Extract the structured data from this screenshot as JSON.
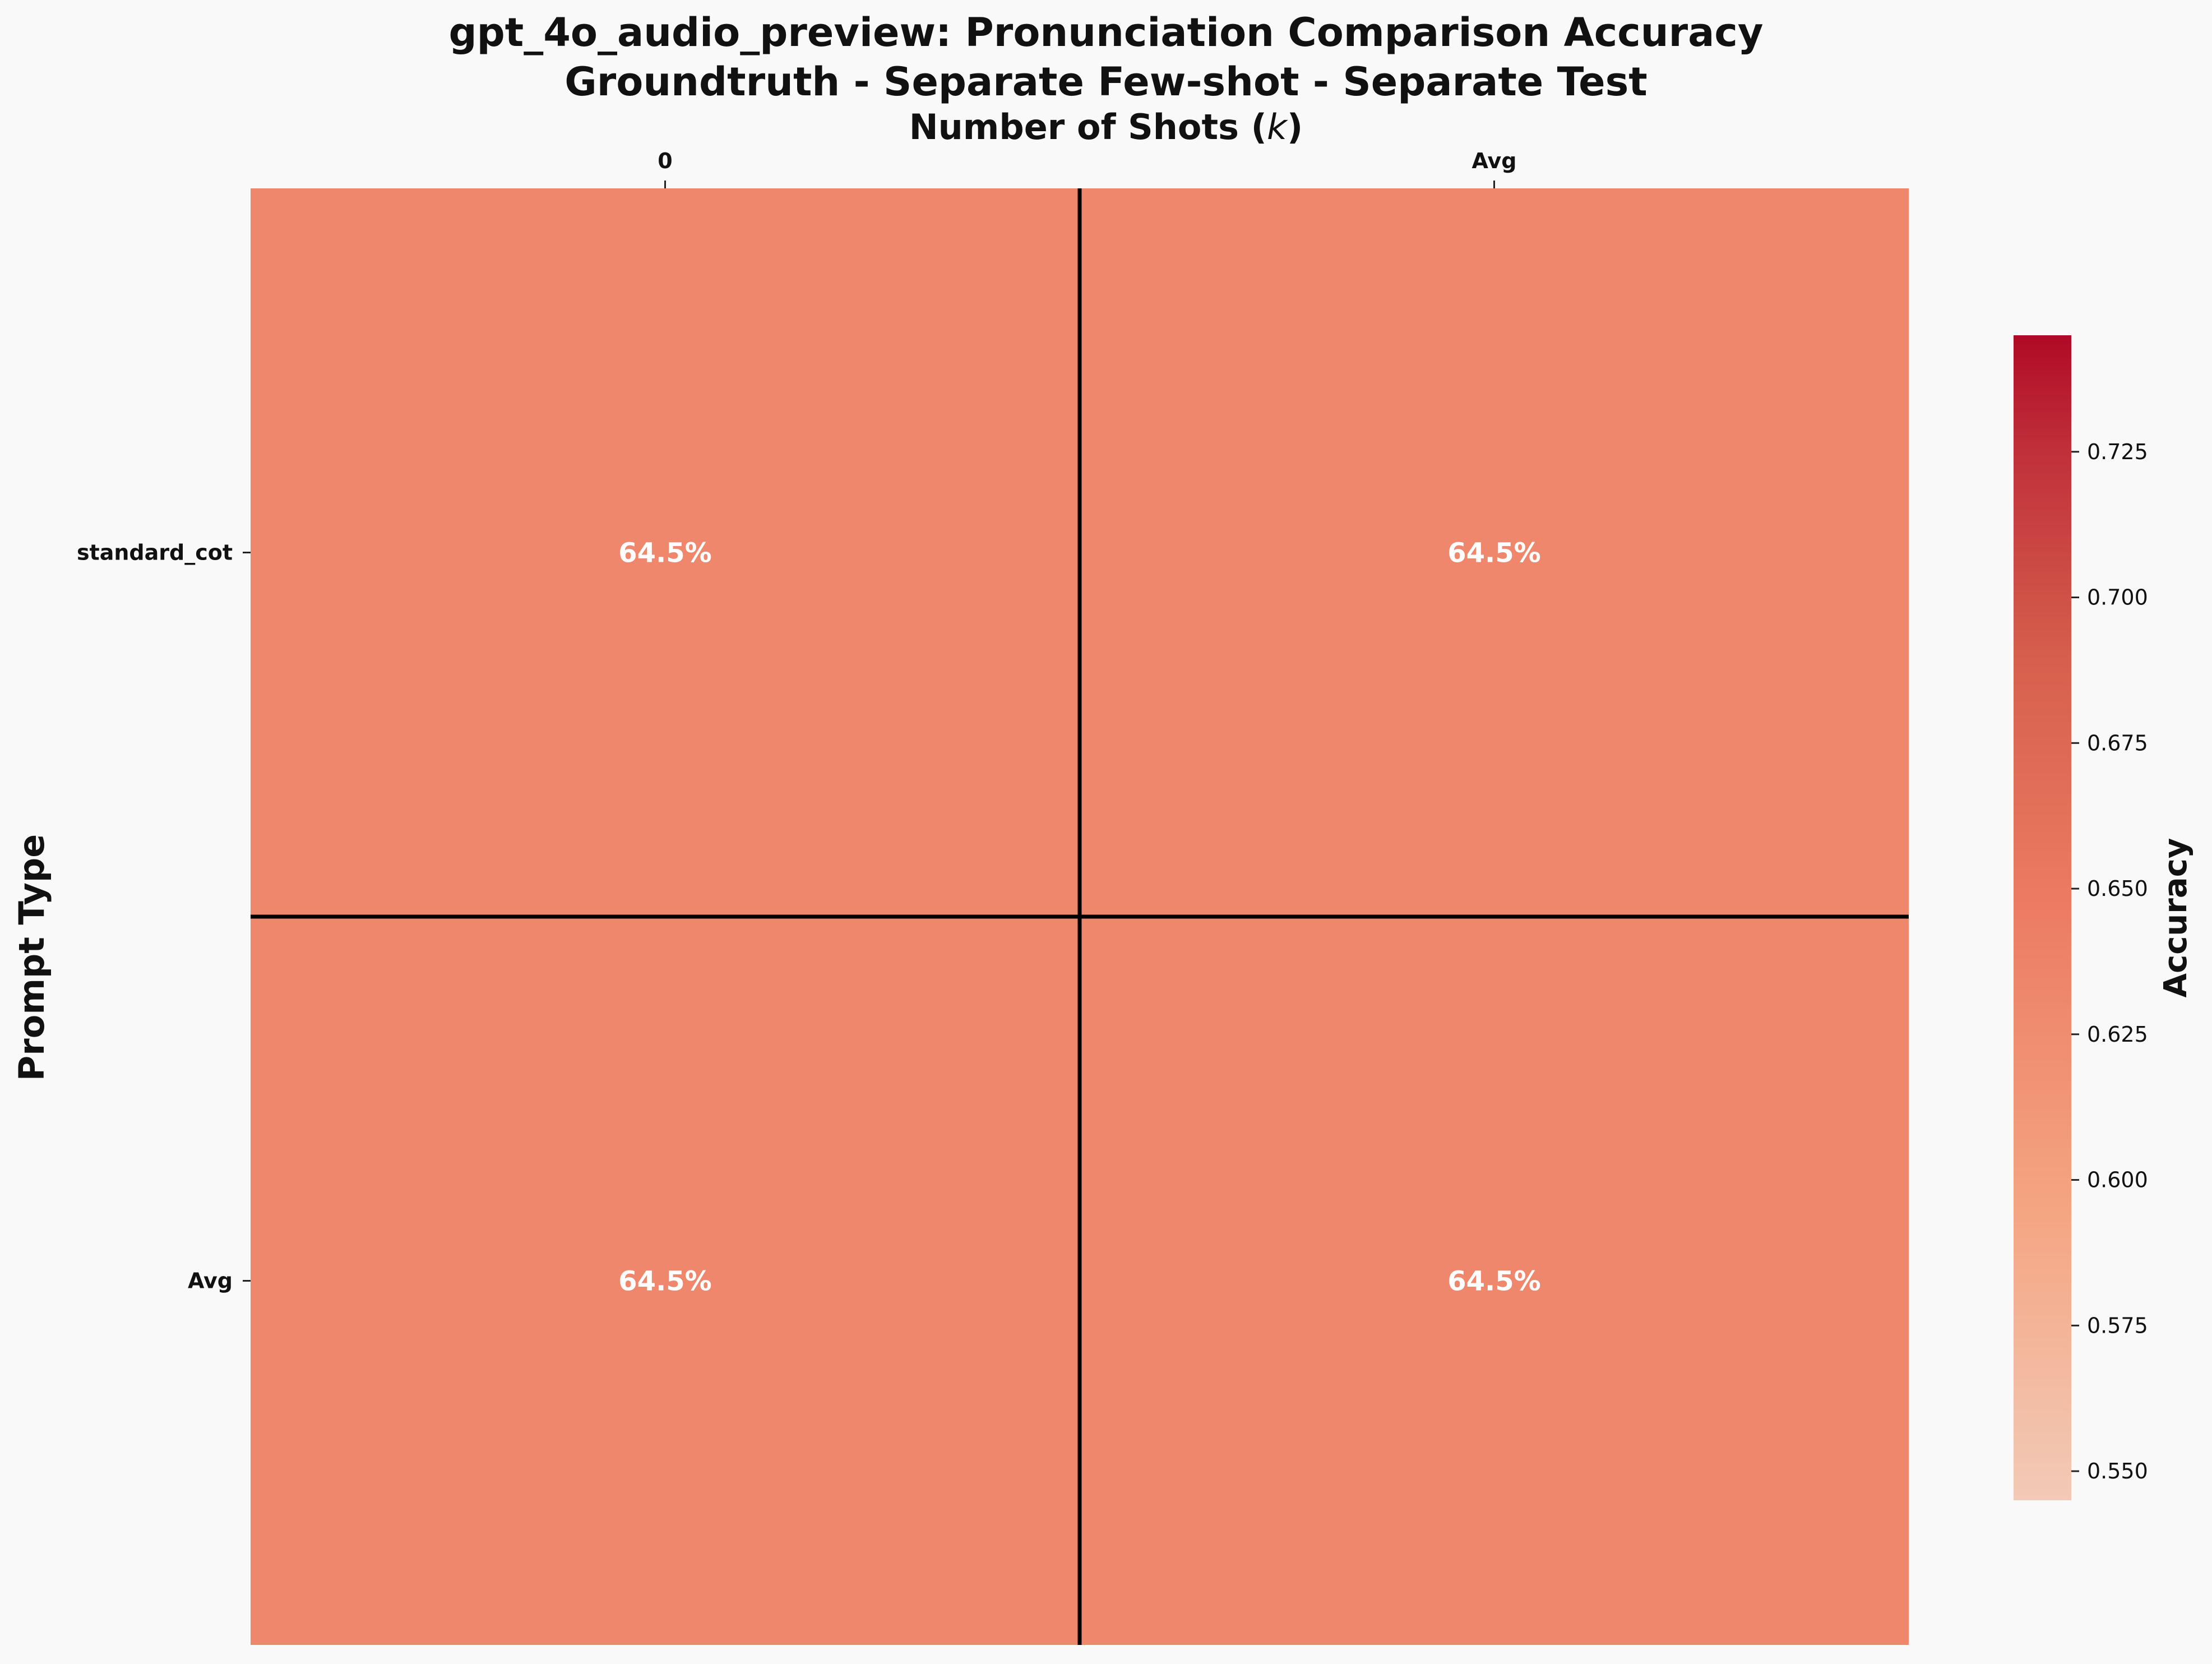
{
  "chart_data": {
    "type": "heatmap",
    "title_line1": "gpt_4o_audio_preview: Pronunciation Comparison Accuracy",
    "title_line2": "Groundtruth - Separate Few-shot - Separate Test",
    "xlabel": "Number of Shots (k)",
    "ylabel": "Prompt Type",
    "x_categories": [
      "0",
      "Avg"
    ],
    "y_categories": [
      "standard_cot",
      "Avg"
    ],
    "values": [
      [
        0.645,
        0.645
      ],
      [
        0.645,
        0.645
      ]
    ],
    "cell_labels": [
      [
        "64.5%",
        "64.5%"
      ],
      [
        "64.5%",
        "64.5%"
      ]
    ],
    "x_tick_position": "top",
    "colorbar": {
      "label": "Accuracy",
      "range": [
        0.545,
        0.745
      ],
      "ticks": [
        "0.550",
        "0.575",
        "0.600",
        "0.625",
        "0.650",
        "0.675",
        "0.700",
        "0.725"
      ],
      "tick_values": [
        0.55,
        0.575,
        0.6,
        0.625,
        0.65,
        0.675,
        0.7,
        0.725
      ],
      "colors": [
        "#f2cab7",
        "#f4a582",
        "#ec7d63",
        "#d6604d",
        "#b2182b",
        "#a50026"
      ]
    },
    "cell_color": "#ee876b",
    "separator_color": "#000000"
  }
}
